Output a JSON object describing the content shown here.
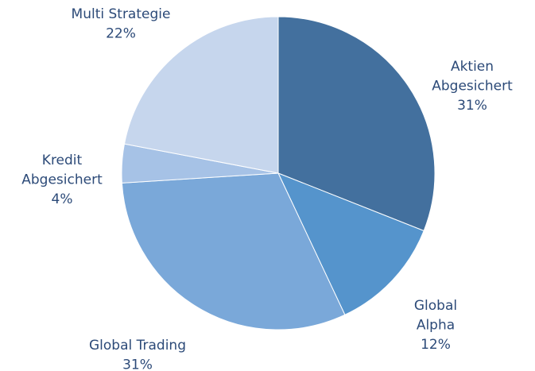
{
  "chart_data": {
    "type": "pie",
    "categories": [
      "Aktien Abgesichert",
      "Global Alpha",
      "Global Trading",
      "Kredit Abgesichert",
      "Multi Strategie"
    ],
    "values": [
      31,
      12,
      31,
      4,
      22
    ],
    "value_labels": [
      "31%",
      "12%",
      "31%",
      "4%",
      "22%"
    ],
    "colors": [
      "#43709e",
      "#5594cc",
      "#7aa8d9",
      "#a6c2e6",
      "#c6d6ed"
    ]
  }
}
